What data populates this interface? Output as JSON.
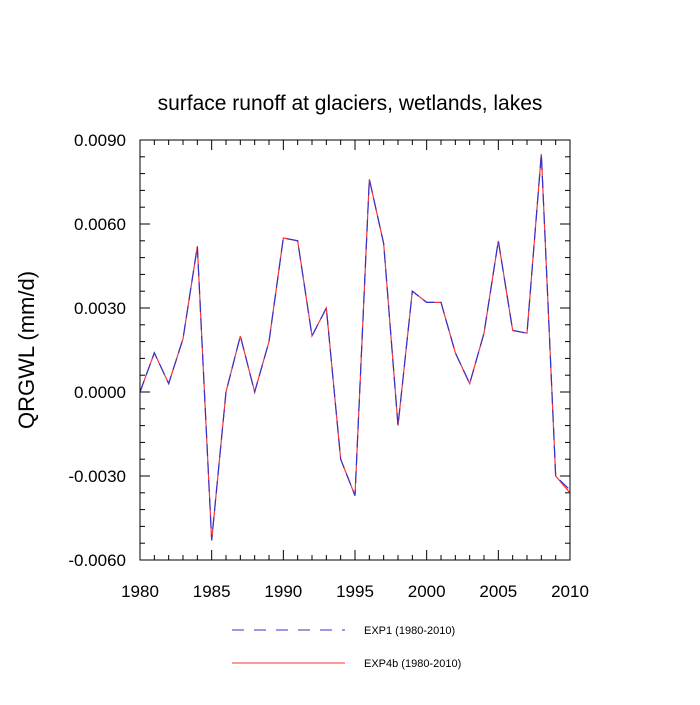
{
  "chart_data": {
    "type": "line",
    "title": "surface runoff at glaciers, wetlands, lakes",
    "xlabel": "",
    "ylabel": "QRGWL  (mm/d)",
    "xlim": [
      1980,
      2010
    ],
    "ylim": [
      -0.006,
      0.009
    ],
    "x_ticks": [
      "1980",
      "1985",
      "1990",
      "1995",
      "2000",
      "2005",
      "2010"
    ],
    "y_ticks": [
      "0.0090",
      "0.0060",
      "0.0030",
      "0.0000",
      "-0.0030",
      "-0.0060"
    ],
    "grid": false,
    "legend_position": "bottom",
    "x": [
      1980,
      1981,
      1982,
      1983,
      1984,
      1985,
      1986,
      1987,
      1988,
      1989,
      1990,
      1991,
      1992,
      1993,
      1994,
      1995,
      1996,
      1997,
      1998,
      1999,
      2000,
      2001,
      2002,
      2003,
      2004,
      2005,
      2006,
      2007,
      2008,
      2009,
      2010
    ],
    "series": [
      {
        "name": "EXP1 (1980-2010)",
        "color": "#3333cc",
        "style": "dashed",
        "values": [
          0.0,
          0.0014,
          0.0003,
          0.0019,
          0.0052,
          -0.0053,
          0.0,
          0.002,
          0.0,
          0.0018,
          0.0055,
          0.0054,
          0.002,
          0.003,
          -0.0024,
          -0.0037,
          0.0076,
          0.0053,
          -0.0012,
          0.0036,
          0.0032,
          0.0032,
          0.0014,
          0.0003,
          0.0021,
          0.0054,
          0.0022,
          0.0021,
          0.0085,
          -0.003,
          -0.0035
        ]
      },
      {
        "name": "EXP4b (1980-2010)",
        "color": "#ff3333",
        "style": "solid",
        "values": [
          0.0,
          0.0014,
          0.0003,
          0.0019,
          0.0052,
          -0.0053,
          0.0,
          0.002,
          0.0,
          0.0018,
          0.0055,
          0.0054,
          0.002,
          0.003,
          -0.0024,
          -0.0037,
          0.0076,
          0.0053,
          -0.0012,
          0.0036,
          0.0032,
          0.0032,
          0.0014,
          0.0003,
          0.0021,
          0.0054,
          0.0022,
          0.0021,
          0.0085,
          -0.003,
          -0.0036
        ]
      }
    ]
  }
}
